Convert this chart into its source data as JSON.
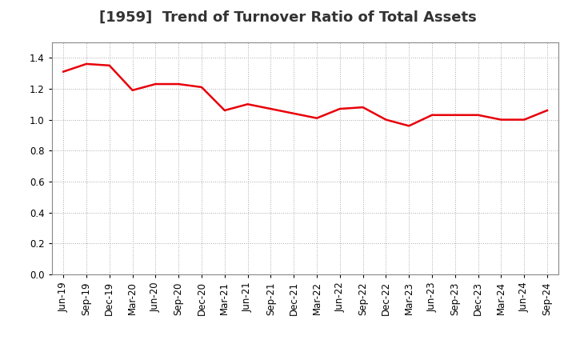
{
  "title": "[1959]  Trend of Turnover Ratio of Total Assets",
  "x_labels": [
    "Jun-19",
    "Sep-19",
    "Dec-19",
    "Mar-20",
    "Jun-20",
    "Sep-20",
    "Dec-20",
    "Mar-21",
    "Jun-21",
    "Sep-21",
    "Dec-21",
    "Mar-22",
    "Jun-22",
    "Sep-22",
    "Dec-22",
    "Mar-23",
    "Jun-23",
    "Sep-23",
    "Dec-23",
    "Mar-24",
    "Jun-24",
    "Sep-24"
  ],
  "y_values": [
    1.31,
    1.36,
    1.35,
    1.19,
    1.23,
    1.23,
    1.21,
    1.06,
    1.1,
    1.07,
    1.04,
    1.01,
    1.07,
    1.08,
    1.0,
    0.96,
    1.03,
    1.03,
    1.03,
    1.0,
    1.0,
    1.06
  ],
  "line_color": "#e8000a",
  "line_width": 1.8,
  "ylim": [
    0.0,
    1.5
  ],
  "yticks": [
    0.0,
    0.2,
    0.4,
    0.6,
    0.8,
    1.0,
    1.2,
    1.4
  ],
  "grid_color": "#aaaaaa",
  "background_color": "#ffffff",
  "title_fontsize": 13,
  "tick_fontsize": 8.5
}
